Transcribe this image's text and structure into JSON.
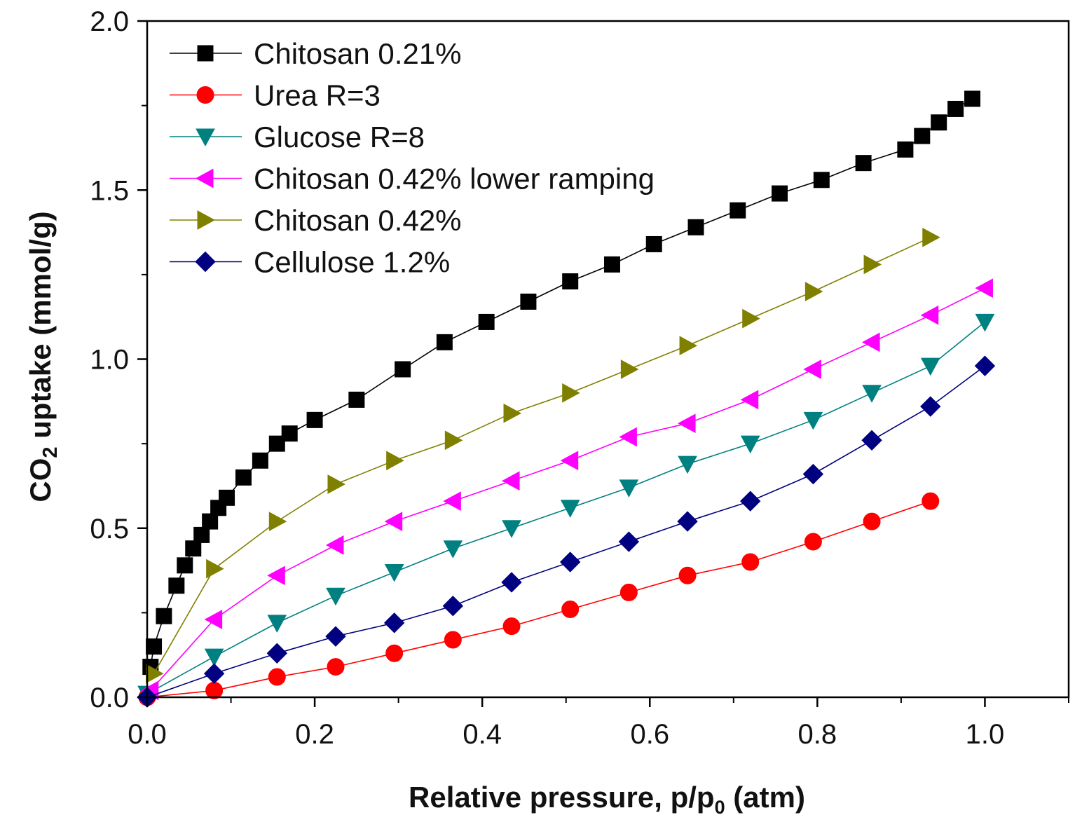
{
  "chart_data": {
    "type": "line",
    "title": "",
    "xlabel": {
      "main": "Relative pressure, p/p",
      "sub": "0",
      "tail": " (atm)"
    },
    "ylabel": {
      "main": "CO",
      "sub": "2",
      "tail": " uptake (mmol/g)"
    },
    "xlim": [
      0.0,
      1.1
    ],
    "ylim": [
      0.0,
      2.0
    ],
    "xticks": [
      0.0,
      0.2,
      0.4,
      0.6,
      0.8,
      1.0
    ],
    "xtick_labels": [
      "0.0",
      "0.2",
      "0.4",
      "0.6",
      "0.8",
      "1.0"
    ],
    "yticks": [
      0.0,
      0.5,
      1.0,
      1.5,
      2.0
    ],
    "ytick_labels": [
      "0.0",
      "0.5",
      "1.0",
      "1.5",
      "2.0"
    ],
    "legend_position": "top-left",
    "grid": false,
    "series": [
      {
        "name": "Chitosan 0.21%",
        "color": "#000000",
        "marker": "square",
        "x": [
          0.004,
          0.008,
          0.02,
          0.035,
          0.045,
          0.055,
          0.065,
          0.075,
          0.085,
          0.095,
          0.115,
          0.135,
          0.155,
          0.17,
          0.2,
          0.25,
          0.305,
          0.355,
          0.405,
          0.455,
          0.505,
          0.555,
          0.605,
          0.655,
          0.705,
          0.755,
          0.805,
          0.855,
          0.905,
          0.925,
          0.945,
          0.965,
          0.985
        ],
        "y": [
          0.09,
          0.15,
          0.24,
          0.33,
          0.39,
          0.44,
          0.48,
          0.52,
          0.56,
          0.59,
          0.65,
          0.7,
          0.75,
          0.78,
          0.82,
          0.88,
          0.97,
          1.05,
          1.11,
          1.17,
          1.23,
          1.28,
          1.34,
          1.39,
          1.44,
          1.49,
          1.53,
          1.58,
          1.62,
          1.66,
          1.7,
          1.74,
          1.77
        ]
      },
      {
        "name": "Urea R=3",
        "color": "#ff0000",
        "marker": "circle",
        "x": [
          0.0,
          0.08,
          0.155,
          0.225,
          0.295,
          0.365,
          0.435,
          0.505,
          0.575,
          0.645,
          0.72,
          0.795,
          0.865,
          0.935
        ],
        "y": [
          0.0,
          0.02,
          0.06,
          0.09,
          0.13,
          0.17,
          0.21,
          0.26,
          0.31,
          0.36,
          0.4,
          0.46,
          0.52,
          0.58
        ]
      },
      {
        "name": "Glucose R=8",
        "color": "#008080",
        "marker": "triangle-down",
        "x": [
          0.0,
          0.08,
          0.155,
          0.225,
          0.295,
          0.365,
          0.435,
          0.505,
          0.575,
          0.645,
          0.72,
          0.795,
          0.865,
          0.935,
          1.0
        ],
        "y": [
          0.01,
          0.12,
          0.22,
          0.3,
          0.37,
          0.44,
          0.5,
          0.56,
          0.62,
          0.69,
          0.75,
          0.82,
          0.9,
          0.98,
          1.11
        ]
      },
      {
        "name": "Chitosan 0.42% lower ramping",
        "color": "#ff00ff",
        "marker": "triangle-left",
        "x": [
          0.004,
          0.08,
          0.155,
          0.225,
          0.295,
          0.365,
          0.435,
          0.505,
          0.575,
          0.645,
          0.72,
          0.795,
          0.865,
          0.935,
          1.0
        ],
        "y": [
          0.02,
          0.23,
          0.36,
          0.45,
          0.52,
          0.58,
          0.64,
          0.7,
          0.77,
          0.81,
          0.88,
          0.97,
          1.05,
          1.13,
          1.21
        ]
      },
      {
        "name": "Chitosan 0.42%",
        "color": "#808000",
        "marker": "triangle-right",
        "x": [
          0.008,
          0.08,
          0.155,
          0.225,
          0.295,
          0.365,
          0.435,
          0.505,
          0.575,
          0.645,
          0.72,
          0.795,
          0.865,
          0.935
        ],
        "y": [
          0.07,
          0.38,
          0.52,
          0.63,
          0.7,
          0.76,
          0.84,
          0.9,
          0.97,
          1.04,
          1.12,
          1.2,
          1.28,
          1.36
        ]
      },
      {
        "name": "Cellulose 1.2%",
        "color": "#000080",
        "marker": "diamond",
        "x": [
          0.0,
          0.08,
          0.155,
          0.225,
          0.295,
          0.365,
          0.435,
          0.505,
          0.575,
          0.645,
          0.72,
          0.795,
          0.865,
          0.935,
          1.0
        ],
        "y": [
          0.0,
          0.07,
          0.13,
          0.18,
          0.22,
          0.27,
          0.34,
          0.4,
          0.46,
          0.52,
          0.58,
          0.66,
          0.76,
          0.86,
          0.98
        ]
      }
    ]
  }
}
